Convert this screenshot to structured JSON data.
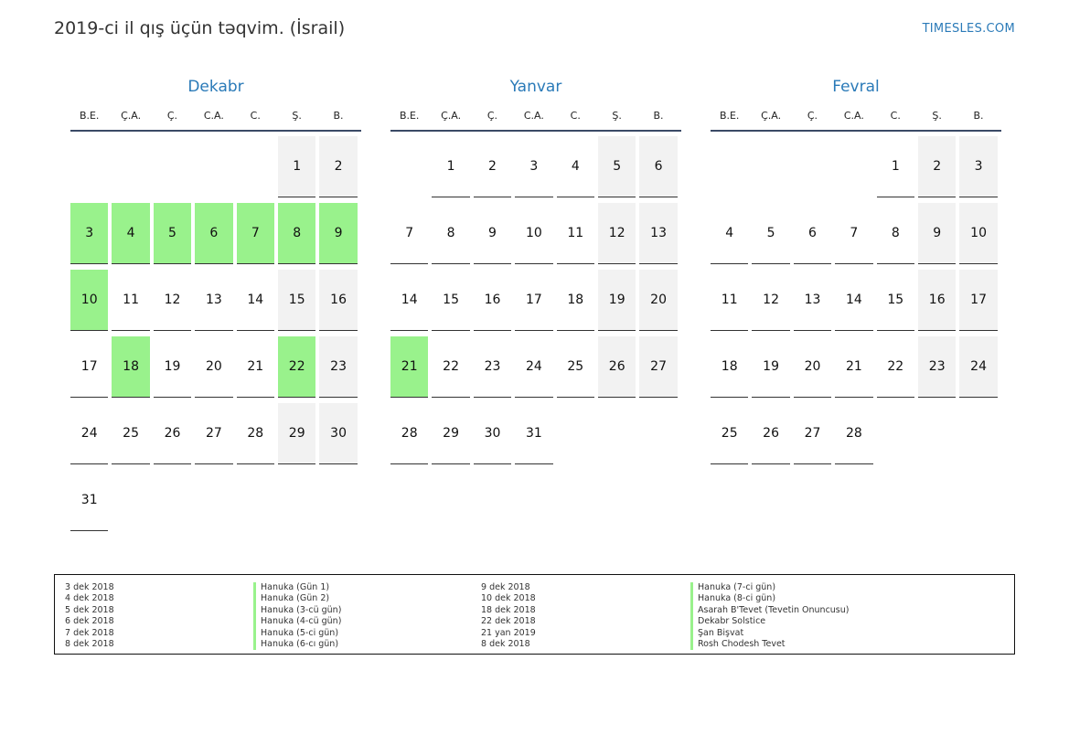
{
  "header": {
    "title": "2019-ci il qış üçün təqvim. (İsrail)",
    "brand": "TIMESLES.COM"
  },
  "weekdays": [
    "B.E.",
    "Ç.A.",
    "Ç.",
    "C.A.",
    "C.",
    "Ş.",
    "B."
  ],
  "colors": {
    "holiday": "#99f28c",
    "weekend": "#f2f2f2",
    "accent": "#2a7ab8"
  },
  "months": [
    {
      "name": "Dekabr",
      "offset": 5,
      "days": 31,
      "holidays": [
        3,
        4,
        5,
        6,
        7,
        8,
        9,
        10,
        18,
        22
      ]
    },
    {
      "name": "Yanvar",
      "offset": 1,
      "days": 31,
      "holidays": [
        21
      ]
    },
    {
      "name": "Fevral",
      "offset": 4,
      "days": 28,
      "holidays": []
    }
  ],
  "legend": {
    "left_dates": [
      "3 dek 2018",
      "4 dek 2018",
      "5 dek 2018",
      "6 dek 2018",
      "7 dek 2018",
      "8 dek 2018"
    ],
    "left_names": [
      "Hanuka (Gün 1)",
      "Hanuka (Gün 2)",
      "Hanuka (3-cü gün)",
      "Hanuka (4-cü gün)",
      "Hanuka (5-ci gün)",
      "Hanuka (6-cı gün)"
    ],
    "right_dates": [
      "9 dek 2018",
      "10 dek 2018",
      "18 dek 2018",
      "22 dek 2018",
      "21 yan 2019",
      "8 dek 2018"
    ],
    "right_names": [
      "Hanuka (7-ci gün)",
      "Hanuka (8-ci gün)",
      "Asarah B'Tevet (Tevetin Onuncusu)",
      "Dekabr Solstice",
      "Şan Bişvat",
      "Rosh Chodesh Tevet"
    ]
  }
}
